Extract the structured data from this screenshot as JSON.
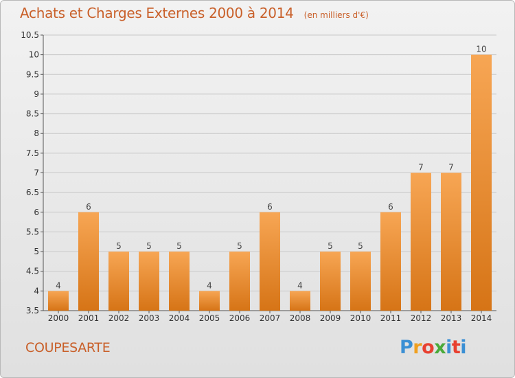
{
  "title": "Achats et Charges Externes 2000 à 2014",
  "unit": "(en milliers d'€)",
  "commune": "COUPESARTE",
  "logo": {
    "text": "Proxiti",
    "letter_colors": [
      "#3a8fd4",
      "#f0a020",
      "#e84030",
      "#4aaa3a",
      "#3a8fd4",
      "#e84030"
    ]
  },
  "colors": {
    "accent": "#c9602a",
    "bar_light": "#f7a654",
    "bar_dark": "#d67416",
    "grid": "#c8c8c8"
  },
  "chart_data": {
    "type": "bar",
    "title": "Achats et Charges Externes 2000 à 2014",
    "subtitle": "(en milliers d'€)",
    "categories": [
      "2000",
      "2001",
      "2002",
      "2003",
      "2004",
      "2005",
      "2006",
      "2007",
      "2008",
      "2009",
      "2010",
      "2011",
      "2012",
      "2013",
      "2014"
    ],
    "values": [
      4,
      6,
      5,
      5,
      5,
      4,
      5,
      6,
      4,
      5,
      5,
      6,
      7,
      7,
      10
    ],
    "data_labels": [
      "4",
      "6",
      "5",
      "5",
      "5",
      "4",
      "5",
      "6",
      "4",
      "5",
      "5",
      "6",
      "7",
      "7",
      "10"
    ],
    "ylim": [
      3.5,
      10.5
    ],
    "yticks": [
      "3.5",
      "4",
      "4.5",
      "5",
      "5.5",
      "6",
      "6.5",
      "7",
      "7.5",
      "8",
      "8.5",
      "9",
      "9.5",
      "10",
      "10.5"
    ],
    "grid": true,
    "xlabel": "",
    "ylabel": ""
  }
}
